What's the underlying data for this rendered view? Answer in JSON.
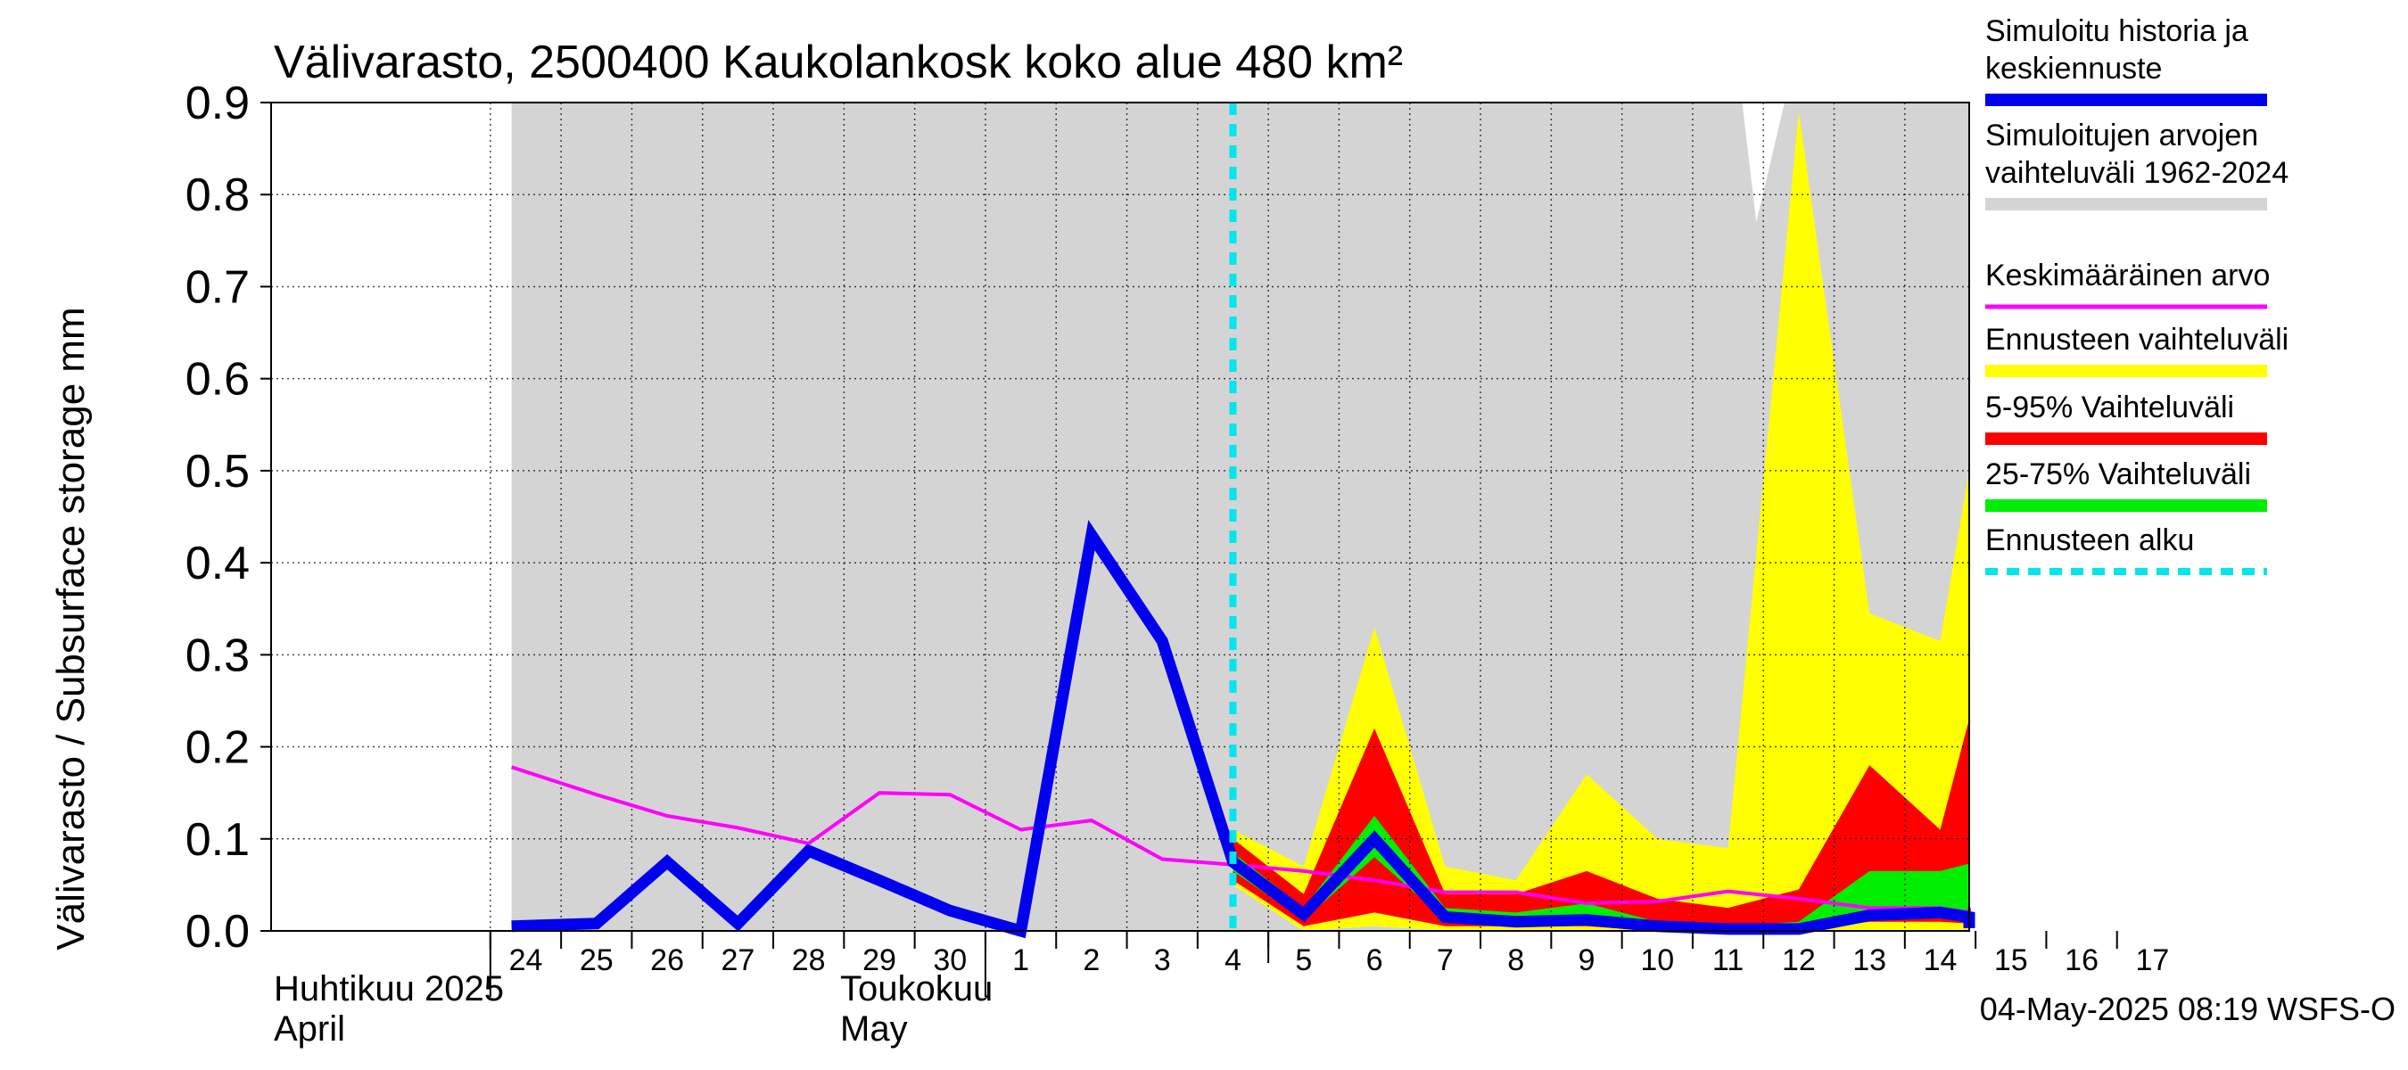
{
  "chart_data": {
    "type": "area",
    "title": "Välivarasto, 2500400 Kaukolankosk koko alue 480 km²",
    "ylabel": "Välivarasto / Subsurface storage  mm",
    "ylim": [
      0,
      0.9
    ],
    "yticks": [
      "0.0",
      "0.1",
      "0.2",
      "0.3",
      "0.4",
      "0.5",
      "0.6",
      "0.7",
      "0.8",
      "0.9"
    ],
    "x_day_labels": [
      "24",
      "25",
      "26",
      "27",
      "28",
      "29",
      "30",
      "1",
      "2",
      "3",
      "4",
      "5",
      "6",
      "7",
      "8",
      "9",
      "10",
      "11",
      "12",
      "13",
      "14",
      "15",
      "16",
      "17"
    ],
    "month_labels": [
      {
        "fi": "Huhtikuu  2025",
        "en": "April"
      },
      {
        "fi": "Toukokuu",
        "en": "May"
      }
    ],
    "forecast_start_day": 10,
    "grid": true,
    "legend_position": "right",
    "legend": [
      {
        "label": "Simuloitu historia ja keskiennuste",
        "color": "#0000ee",
        "style": "thick"
      },
      {
        "label": "Simuloitujen arvojen vaihteluväli 1962-2024",
        "color": "#d4d4d4",
        "style": "thick"
      },
      {
        "label": "Keskimääräinen arvo",
        "color": "#ff00ff",
        "style": "thin"
      },
      {
        "label": "Ennusteen vaihteluväli",
        "color": "#ffff00",
        "style": "thick"
      },
      {
        "label": "5-95% Vaihteluväli",
        "color": "#ff0000",
        "style": "thick"
      },
      {
        "label": "25-75% Vaihteluväli",
        "color": "#00ee00",
        "style": "thick"
      },
      {
        "label": "Ennusteen alku",
        "color": "#00e5ee",
        "style": "dashed"
      }
    ],
    "footer": "04-May-2025 08:19 WSFS-O",
    "series": {
      "historical_range": {
        "x": [
          -0.2,
          17.2,
          17.4,
          17.8,
          18.0,
          21.2,
          22.2,
          23.0,
          23.2,
          23.8
        ],
        "upper": [
          0.9,
          0.9,
          0.77,
          0.9,
          0.9,
          0.9,
          0.52,
          0.67,
          0.9,
          0.9
        ],
        "lower": [
          0,
          0,
          0,
          0,
          0,
          0,
          0,
          0,
          0,
          0
        ]
      },
      "simulated_mean_forecast": {
        "x": [
          -0.2,
          1,
          2,
          3,
          4,
          5,
          6,
          7,
          8,
          9,
          10,
          11,
          12,
          13,
          14,
          15,
          16,
          17,
          18,
          19,
          20,
          21,
          22,
          23,
          23.8
        ],
        "values": [
          0.005,
          0.008,
          0.075,
          0.008,
          0.087,
          0.055,
          0.022,
          0.0,
          0.43,
          0.315,
          0.075,
          0.018,
          0.1,
          0.015,
          0.01,
          0.012,
          0.005,
          0.002,
          0.002,
          0.017,
          0.02,
          0.015,
          0.01,
          0.005,
          0.003
        ]
      },
      "average_value": {
        "x": [
          -0.2,
          1,
          2,
          3,
          4,
          5,
          6,
          7,
          8,
          9,
          10,
          11,
          12,
          13,
          14,
          15,
          16,
          17,
          18,
          19,
          20,
          21,
          22,
          23,
          23.8
        ],
        "values": [
          0.178,
          0.148,
          0.125,
          0.112,
          0.095,
          0.15,
          0.148,
          0.11,
          0.12,
          0.078,
          0.072,
          0.065,
          0.055,
          0.042,
          0.042,
          0.03,
          0.032,
          0.043,
          0.035,
          0.025,
          0.025,
          0.02,
          0.025,
          0.022,
          0.015
        ]
      },
      "forecast_range": {
        "x": [
          10,
          11,
          12,
          13,
          14,
          15,
          16,
          17,
          18,
          19,
          20,
          21,
          22,
          23,
          23.8
        ],
        "upper": [
          0.11,
          0.07,
          0.33,
          0.07,
          0.055,
          0.17,
          0.1,
          0.09,
          0.89,
          0.345,
          0.315,
          0.5,
          0.54,
          0.2,
          0.5
        ],
        "lower": [
          0.05,
          0.0,
          0.005,
          0.0,
          0.0,
          0.0,
          0.0,
          0.0,
          0.0,
          0.0,
          0.0,
          0.0,
          0.0,
          0.0,
          0.0
        ]
      },
      "p5_95": {
        "x": [
          10,
          11,
          12,
          13,
          14,
          15,
          16,
          17,
          18,
          19,
          20,
          21,
          22,
          23,
          23.8
        ],
        "upper": [
          0.1,
          0.04,
          0.22,
          0.04,
          0.04,
          0.065,
          0.035,
          0.025,
          0.045,
          0.18,
          0.11,
          0.23,
          0.11,
          0.103,
          0.103
        ],
        "lower": [
          0.055,
          0.005,
          0.02,
          0.005,
          0.005,
          0.005,
          0.0,
          0.0,
          0.0,
          0.01,
          0.01,
          0.008,
          0.005,
          0.0,
          0.0
        ]
      },
      "p25_75": {
        "x": [
          10,
          11,
          12,
          13,
          14,
          15,
          16,
          17,
          18,
          19,
          20,
          21,
          22,
          23,
          23.8
        ],
        "upper": [
          0.085,
          0.025,
          0.125,
          0.025,
          0.02,
          0.03,
          0.01,
          0.005,
          0.01,
          0.065,
          0.065,
          0.073,
          0.025,
          0.02,
          0.015
        ],
        "lower": [
          0.065,
          0.012,
          0.08,
          0.012,
          0.008,
          0.01,
          0.003,
          0.002,
          0.002,
          0.012,
          0.015,
          0.01,
          0.005,
          0.003,
          0.002
        ]
      }
    }
  }
}
